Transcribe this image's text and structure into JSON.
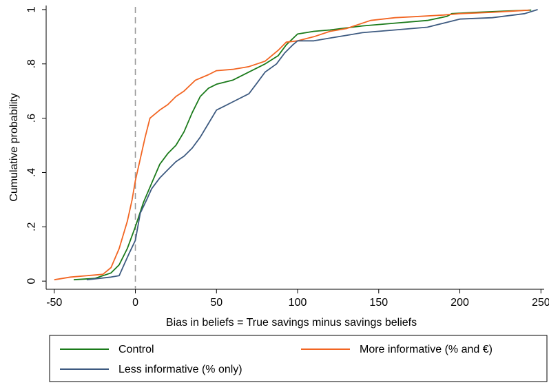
{
  "chart_data": {
    "type": "line",
    "title": "",
    "xlabel": "Bias in beliefs = True savings minus savings beliefs",
    "ylabel": "Cumulative probability",
    "xlim": [
      -55,
      252
    ],
    "ylim": [
      -0.03,
      1.015
    ],
    "x_ticks": [
      -50,
      0,
      50,
      100,
      150,
      200,
      250
    ],
    "x_tick_labels": [
      "-50",
      "0",
      "50",
      "100",
      "150",
      "200",
      "250"
    ],
    "y_ticks": [
      0,
      0.2,
      0.4,
      0.6,
      0.8,
      1
    ],
    "y_tick_labels": [
      "0",
      ".2",
      ".4",
      ".6",
      ".8",
      "1"
    ],
    "reference_line": {
      "x": 0,
      "style": "dashed",
      "color": "#999999"
    },
    "grid": false,
    "legend": {
      "placement": "bottom",
      "entries": [
        "Control",
        "More informative (% and €)",
        "Less informative (% only)"
      ]
    },
    "series": [
      {
        "name": "Control",
        "color": "#1a7a1a",
        "points": [
          [
            -38,
            0.005
          ],
          [
            -25,
            0.01
          ],
          [
            -15,
            0.03
          ],
          [
            -10,
            0.06
          ],
          [
            -5,
            0.12
          ],
          [
            0,
            0.2
          ],
          [
            5,
            0.29
          ],
          [
            10,
            0.36
          ],
          [
            15,
            0.43
          ],
          [
            20,
            0.47
          ],
          [
            25,
            0.5
          ],
          [
            30,
            0.55
          ],
          [
            35,
            0.62
          ],
          [
            40,
            0.68
          ],
          [
            45,
            0.71
          ],
          [
            50,
            0.725
          ],
          [
            60,
            0.74
          ],
          [
            70,
            0.77
          ],
          [
            80,
            0.8
          ],
          [
            88,
            0.83
          ],
          [
            93,
            0.87
          ],
          [
            100,
            0.91
          ],
          [
            110,
            0.92
          ],
          [
            120,
            0.925
          ],
          [
            140,
            0.94
          ],
          [
            160,
            0.95
          ],
          [
            180,
            0.96
          ],
          [
            192,
            0.975
          ],
          [
            195,
            0.985
          ],
          [
            210,
            0.99
          ],
          [
            230,
            0.995
          ],
          [
            244,
            0.998
          ]
        ]
      },
      {
        "name": "More informative (% and €)",
        "color": "#f26522",
        "points": [
          [
            -50,
            0.005
          ],
          [
            -40,
            0.015
          ],
          [
            -20,
            0.025
          ],
          [
            -15,
            0.05
          ],
          [
            -10,
            0.12
          ],
          [
            -5,
            0.22
          ],
          [
            -2,
            0.3
          ],
          [
            0,
            0.37
          ],
          [
            3,
            0.45
          ],
          [
            6,
            0.53
          ],
          [
            9,
            0.6
          ],
          [
            15,
            0.63
          ],
          [
            20,
            0.65
          ],
          [
            25,
            0.68
          ],
          [
            30,
            0.7
          ],
          [
            37,
            0.74
          ],
          [
            45,
            0.76
          ],
          [
            50,
            0.775
          ],
          [
            60,
            0.78
          ],
          [
            70,
            0.79
          ],
          [
            80,
            0.81
          ],
          [
            88,
            0.85
          ],
          [
            93,
            0.88
          ],
          [
            100,
            0.885
          ],
          [
            110,
            0.9
          ],
          [
            120,
            0.92
          ],
          [
            130,
            0.93
          ],
          [
            145,
            0.96
          ],
          [
            160,
            0.97
          ],
          [
            175,
            0.975
          ],
          [
            190,
            0.98
          ],
          [
            200,
            0.985
          ],
          [
            220,
            0.99
          ],
          [
            243,
            0.998
          ]
        ]
      },
      {
        "name": "Less informative (% only)",
        "color": "#3d5a80",
        "points": [
          [
            -30,
            0.005
          ],
          [
            -15,
            0.015
          ],
          [
            -10,
            0.02
          ],
          [
            -7,
            0.06
          ],
          [
            -4,
            0.1
          ],
          [
            0,
            0.15
          ],
          [
            3,
            0.25
          ],
          [
            7,
            0.3
          ],
          [
            10,
            0.34
          ],
          [
            15,
            0.38
          ],
          [
            20,
            0.41
          ],
          [
            25,
            0.44
          ],
          [
            30,
            0.46
          ],
          [
            35,
            0.49
          ],
          [
            40,
            0.53
          ],
          [
            45,
            0.58
          ],
          [
            50,
            0.63
          ],
          [
            55,
            0.645
          ],
          [
            60,
            0.66
          ],
          [
            70,
            0.69
          ],
          [
            75,
            0.73
          ],
          [
            80,
            0.77
          ],
          [
            87,
            0.8
          ],
          [
            92,
            0.84
          ],
          [
            97,
            0.87
          ],
          [
            100,
            0.885
          ],
          [
            110,
            0.885
          ],
          [
            120,
            0.895
          ],
          [
            130,
            0.905
          ],
          [
            140,
            0.915
          ],
          [
            160,
            0.925
          ],
          [
            180,
            0.935
          ],
          [
            190,
            0.95
          ],
          [
            200,
            0.965
          ],
          [
            220,
            0.97
          ],
          [
            240,
            0.985
          ],
          [
            248,
            1.0
          ]
        ]
      }
    ]
  }
}
